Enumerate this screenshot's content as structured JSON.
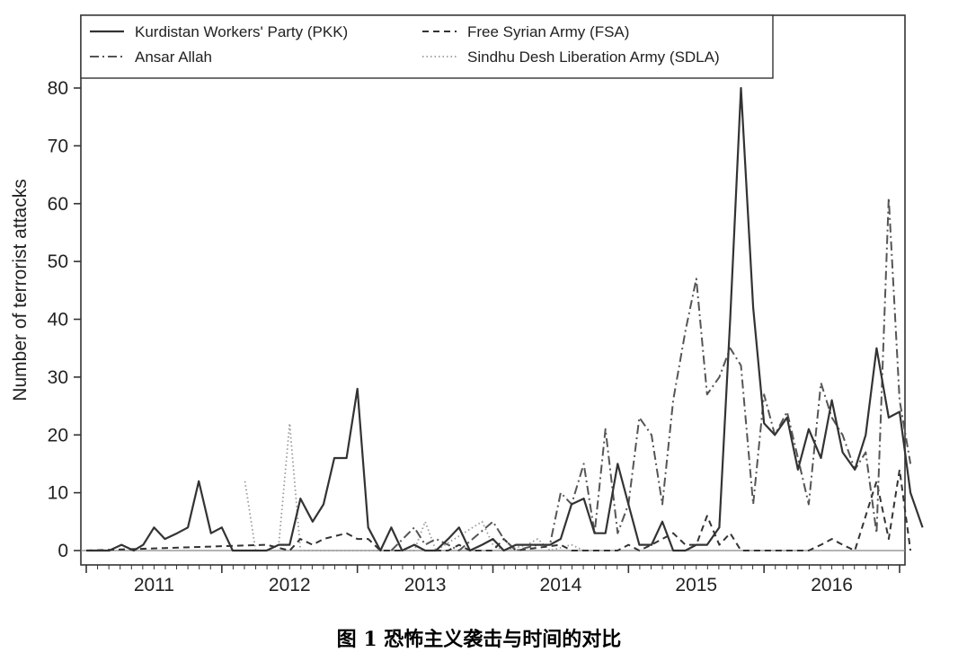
{
  "chart_data": {
    "type": "line",
    "title": "",
    "xlabel": "",
    "ylabel": "Number of terrorist attacks",
    "ylim": [
      0,
      80
    ],
    "yticks": [
      0,
      10,
      20,
      30,
      40,
      50,
      60,
      70,
      80
    ],
    "xlim": [
      2010.5,
      2016.5
    ],
    "xticks": [
      {
        "value": 2011,
        "label": "2011"
      },
      {
        "value": 2012,
        "label": "2012"
      },
      {
        "value": 2013,
        "label": "2013"
      },
      {
        "value": 2014,
        "label": "2014"
      },
      {
        "value": 2015,
        "label": "2015"
      },
      {
        "value": 2016,
        "label": "2016"
      }
    ],
    "grid": false,
    "legend_position": "top-left",
    "series": [
      {
        "name": "Kurdistan Workers' Party (PKK)",
        "style": "solid",
        "color": "#333333",
        "points": [
          [
            2010.5,
            0
          ],
          [
            2010.67,
            0
          ],
          [
            2010.76,
            1
          ],
          [
            2010.85,
            0
          ],
          [
            2010.92,
            1
          ],
          [
            2011.0,
            4
          ],
          [
            2011.08,
            2
          ],
          [
            2011.17,
            3
          ],
          [
            2011.25,
            4
          ],
          [
            2011.33,
            12
          ],
          [
            2011.42,
            3
          ],
          [
            2011.5,
            4
          ],
          [
            2011.58,
            0
          ],
          [
            2011.67,
            0
          ],
          [
            2011.83,
            0
          ],
          [
            2011.92,
            1
          ],
          [
            2012.0,
            1
          ],
          [
            2012.08,
            9
          ],
          [
            2012.17,
            5
          ],
          [
            2012.25,
            8
          ],
          [
            2012.33,
            16
          ],
          [
            2012.42,
            16
          ],
          [
            2012.5,
            28
          ],
          [
            2012.58,
            4
          ],
          [
            2012.67,
            0
          ],
          [
            2012.75,
            4
          ],
          [
            2012.83,
            0
          ],
          [
            2012.92,
            1
          ],
          [
            2013.0,
            0
          ],
          [
            2013.08,
            0
          ],
          [
            2013.17,
            2
          ],
          [
            2013.25,
            4
          ],
          [
            2013.33,
            0
          ],
          [
            2013.42,
            1
          ],
          [
            2013.5,
            2
          ],
          [
            2013.58,
            0
          ],
          [
            2013.67,
            1
          ],
          [
            2013.75,
            1
          ],
          [
            2013.83,
            1
          ],
          [
            2013.92,
            1
          ],
          [
            2014.0,
            2
          ],
          [
            2014.08,
            8
          ],
          [
            2014.17,
            9
          ],
          [
            2014.25,
            3
          ],
          [
            2014.33,
            3
          ],
          [
            2014.42,
            15
          ],
          [
            2014.5,
            8
          ],
          [
            2014.58,
            1
          ],
          [
            2014.67,
            1
          ],
          [
            2014.75,
            5
          ],
          [
            2014.83,
            0
          ],
          [
            2014.92,
            0
          ],
          [
            2015.0,
            1
          ],
          [
            2015.08,
            1
          ],
          [
            2015.17,
            4
          ],
          [
            2015.25,
            40
          ],
          [
            2015.33,
            80
          ],
          [
            2015.42,
            42
          ],
          [
            2015.5,
            22
          ],
          [
            2015.58,
            20
          ],
          [
            2015.67,
            23
          ],
          [
            2015.75,
            14
          ],
          [
            2015.83,
            21
          ],
          [
            2015.92,
            16
          ],
          [
            2016.0,
            26
          ],
          [
            2016.08,
            17
          ],
          [
            2016.17,
            14
          ],
          [
            2016.25,
            20
          ],
          [
            2016.33,
            35
          ],
          [
            2016.42,
            23
          ],
          [
            2016.5,
            24
          ],
          [
            2016.58,
            10
          ],
          [
            2016.67,
            4
          ]
        ]
      },
      {
        "name": "Free Syrian Army (FSA)",
        "style": "dashed",
        "color": "#333333",
        "points": [
          [
            2010.5,
            0
          ],
          [
            2011.83,
            1
          ],
          [
            2012.0,
            0
          ],
          [
            2012.08,
            2
          ],
          [
            2012.17,
            1
          ],
          [
            2012.25,
            2
          ],
          [
            2012.42,
            3
          ],
          [
            2012.5,
            2
          ],
          [
            2012.58,
            2
          ],
          [
            2012.67,
            0
          ],
          [
            2012.83,
            0
          ],
          [
            2012.92,
            1
          ],
          [
            2013.0,
            0
          ],
          [
            2013.17,
            0
          ],
          [
            2013.25,
            1
          ],
          [
            2013.33,
            0
          ],
          [
            2013.5,
            0
          ],
          [
            2013.58,
            2
          ],
          [
            2013.67,
            0
          ],
          [
            2014.0,
            1
          ],
          [
            2014.08,
            0
          ],
          [
            2014.42,
            0
          ],
          [
            2014.5,
            1
          ],
          [
            2014.58,
            0
          ],
          [
            2014.67,
            1
          ],
          [
            2014.75,
            2
          ],
          [
            2014.83,
            3
          ],
          [
            2014.92,
            1
          ],
          [
            2015.0,
            1
          ],
          [
            2015.08,
            6
          ],
          [
            2015.17,
            1
          ],
          [
            2015.25,
            3
          ],
          [
            2015.33,
            0
          ],
          [
            2015.83,
            0
          ],
          [
            2015.92,
            1
          ],
          [
            2016.0,
            2
          ],
          [
            2016.08,
            1
          ],
          [
            2016.17,
            0
          ],
          [
            2016.33,
            12
          ],
          [
            2016.42,
            2
          ],
          [
            2016.5,
            14
          ],
          [
            2016.58,
            0
          ]
        ]
      },
      {
        "name": "Ansar Allah",
        "style": "dash-dot",
        "color": "#555555",
        "points": [
          [
            2012.75,
            0
          ],
          [
            2012.92,
            4
          ],
          [
            2013.0,
            1
          ],
          [
            2013.08,
            2
          ],
          [
            2013.17,
            1
          ],
          [
            2013.25,
            0
          ],
          [
            2013.5,
            5
          ],
          [
            2013.58,
            2
          ],
          [
            2013.67,
            0
          ],
          [
            2013.83,
            1
          ],
          [
            2013.92,
            1
          ],
          [
            2014.0,
            10
          ],
          [
            2014.08,
            8
          ],
          [
            2014.17,
            15
          ],
          [
            2014.25,
            3
          ],
          [
            2014.33,
            21
          ],
          [
            2014.42,
            3
          ],
          [
            2014.5,
            8
          ],
          [
            2014.58,
            23
          ],
          [
            2014.67,
            20
          ],
          [
            2014.75,
            8
          ],
          [
            2014.83,
            26
          ],
          [
            2014.92,
            38
          ],
          [
            2015.0,
            47
          ],
          [
            2015.08,
            27
          ],
          [
            2015.17,
            30
          ],
          [
            2015.25,
            35
          ],
          [
            2015.33,
            32
          ],
          [
            2015.42,
            8
          ],
          [
            2015.5,
            27
          ],
          [
            2015.58,
            20
          ],
          [
            2015.67,
            24
          ],
          [
            2015.75,
            16
          ],
          [
            2015.83,
            8
          ],
          [
            2015.92,
            29
          ],
          [
            2016.0,
            23
          ],
          [
            2016.08,
            20
          ],
          [
            2016.17,
            14
          ],
          [
            2016.25,
            17
          ],
          [
            2016.33,
            3
          ],
          [
            2016.42,
            61
          ],
          [
            2016.5,
            26
          ],
          [
            2016.58,
            15
          ]
        ]
      },
      {
        "name": "Sindhu Desh Liberation Army (SDLA)",
        "style": "dotted",
        "color": "#999999",
        "points": [
          [
            2011.67,
            12
          ],
          [
            2011.75,
            0
          ],
          [
            2011.83,
            0
          ],
          [
            2011.92,
            1
          ],
          [
            2012.0,
            22
          ],
          [
            2012.08,
            0
          ],
          [
            2012.42,
            0
          ],
          [
            2012.92,
            0
          ],
          [
            2013.0,
            5
          ],
          [
            2013.08,
            0
          ],
          [
            2013.42,
            5
          ],
          [
            2013.5,
            1
          ],
          [
            2013.58,
            0
          ],
          [
            2013.75,
            1
          ],
          [
            2013.83,
            2
          ],
          [
            2013.92,
            0
          ],
          [
            2014.08,
            1
          ],
          [
            2014.17,
            0
          ]
        ]
      }
    ]
  },
  "caption": "图 1  恐怖主义袭击与时间的对比"
}
